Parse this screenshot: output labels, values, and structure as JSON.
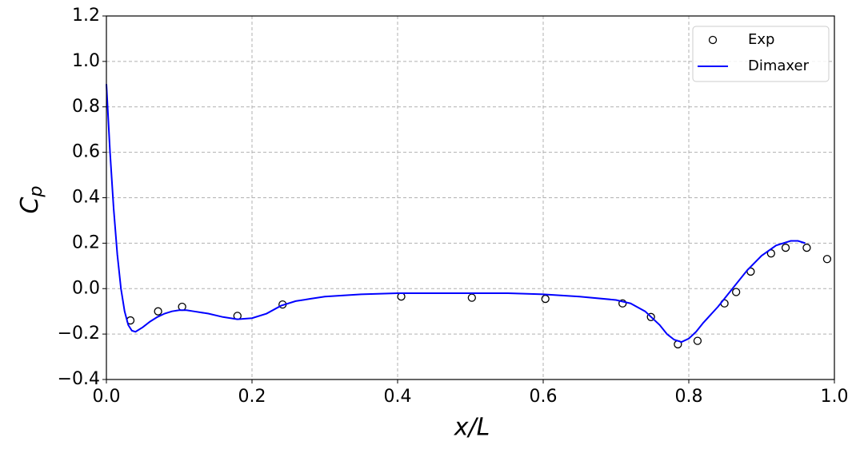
{
  "chart_data": {
    "type": "line",
    "xlabel": "x/L",
    "ylabel": "Cp",
    "xlim": [
      0,
      1.0
    ],
    "ylim": [
      -0.4,
      1.2
    ],
    "xticks": [
      {
        "value": 0,
        "label": "0.0"
      },
      {
        "value": 0.2,
        "label": "0.2"
      },
      {
        "value": 0.4,
        "label": "0.4"
      },
      {
        "value": 0.6,
        "label": "0.6"
      },
      {
        "value": 0.8,
        "label": "0.8"
      },
      {
        "value": 1.0,
        "label": "1.0"
      }
    ],
    "yticks": [
      {
        "value": -0.4,
        "label": "−0.4"
      },
      {
        "value": -0.2,
        "label": "−0.2"
      },
      {
        "value": 0,
        "label": "0.0"
      },
      {
        "value": 0.2,
        "label": "0.2"
      },
      {
        "value": 0.4,
        "label": "0.4"
      },
      {
        "value": 0.6,
        "label": "0.6"
      },
      {
        "value": 0.8,
        "label": "0.8"
      },
      {
        "value": 1.0,
        "label": "1.0"
      },
      {
        "value": 1.2,
        "label": "1.2"
      }
    ],
    "grid": true,
    "legend": "upper right",
    "series": [
      {
        "name": "Exp",
        "type": "scatter",
        "color": "#000000",
        "x": [
          0.033,
          0.071,
          0.104,
          0.18,
          0.242,
          0.405,
          0.502,
          0.603,
          0.709,
          0.748,
          0.785,
          0.812,
          0.849,
          0.865,
          0.885,
          0.913,
          0.933,
          0.962,
          0.99
        ],
        "values": [
          -0.14,
          -0.1,
          -0.08,
          -0.12,
          -0.07,
          -0.035,
          -0.04,
          -0.045,
          -0.065,
          -0.125,
          -0.245,
          -0.23,
          -0.065,
          -0.015,
          0.075,
          0.155,
          0.18,
          0.18,
          0.13
        ]
      },
      {
        "name": "Dimaxer",
        "type": "line",
        "color": "#0000ff",
        "x": [
          0,
          0.005,
          0.01,
          0.015,
          0.02,
          0.025,
          0.03,
          0.035,
          0.04,
          0.05,
          0.06,
          0.07,
          0.08,
          0.09,
          0.1,
          0.11,
          0.12,
          0.14,
          0.16,
          0.18,
          0.2,
          0.22,
          0.24,
          0.26,
          0.28,
          0.3,
          0.35,
          0.4,
          0.45,
          0.5,
          0.55,
          0.6,
          0.65,
          0.7,
          0.72,
          0.74,
          0.76,
          0.77,
          0.78,
          0.79,
          0.8,
          0.81,
          0.82,
          0.84,
          0.86,
          0.88,
          0.9,
          0.92,
          0.94,
          0.95,
          0.96
        ],
        "values": [
          0.9,
          0.6,
          0.35,
          0.15,
          0.0,
          -0.1,
          -0.16,
          -0.185,
          -0.19,
          -0.17,
          -0.145,
          -0.125,
          -0.11,
          -0.1,
          -0.095,
          -0.095,
          -0.1,
          -0.11,
          -0.125,
          -0.135,
          -0.13,
          -0.11,
          -0.075,
          -0.055,
          -0.045,
          -0.035,
          -0.025,
          -0.02,
          -0.02,
          -0.02,
          -0.02,
          -0.025,
          -0.035,
          -0.05,
          -0.065,
          -0.1,
          -0.16,
          -0.2,
          -0.225,
          -0.235,
          -0.22,
          -0.19,
          -0.15,
          -0.08,
          0.0,
          0.08,
          0.145,
          0.19,
          0.21,
          0.21,
          0.2
        ]
      }
    ]
  }
}
